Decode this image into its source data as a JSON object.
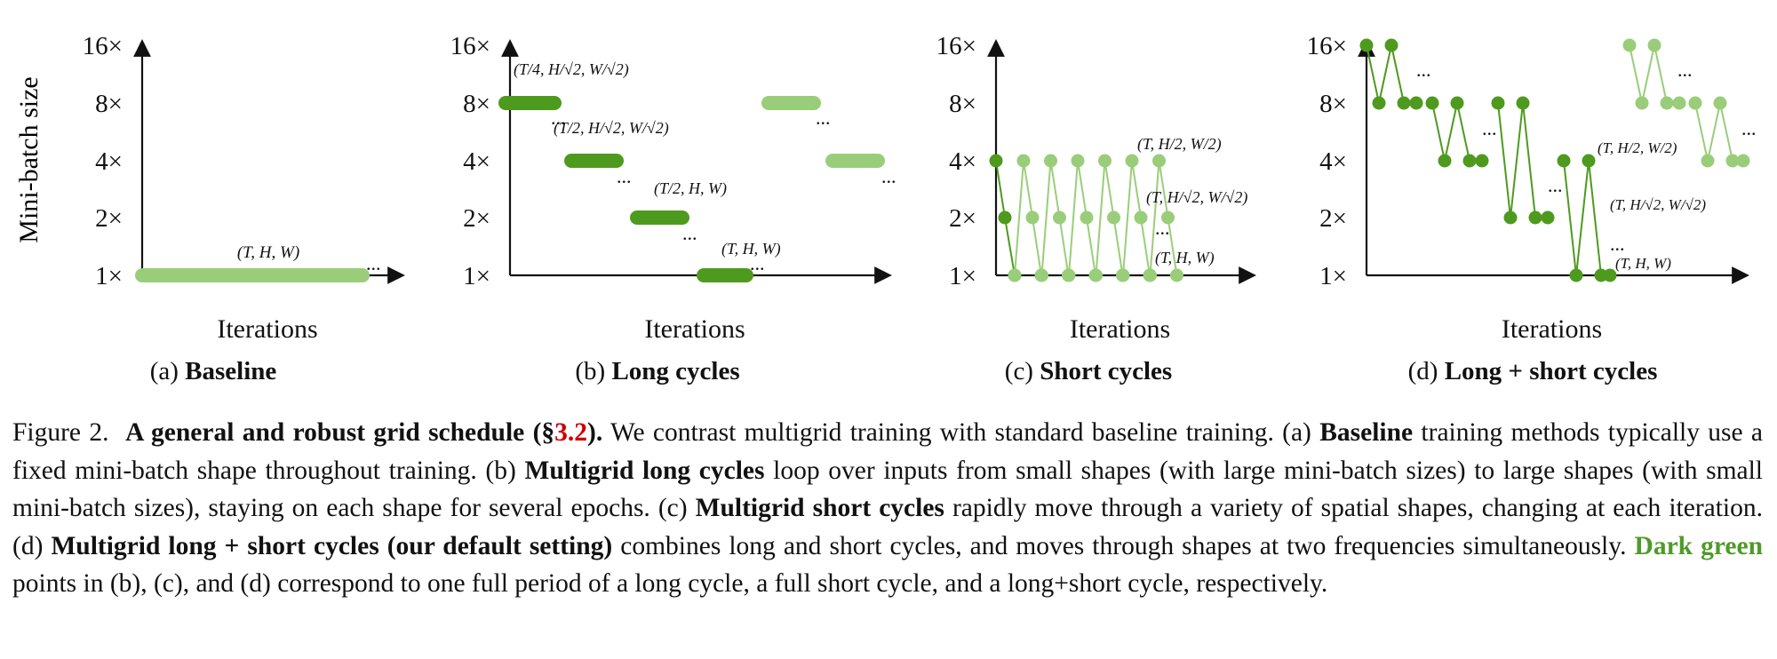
{
  "figure": {
    "ylabel": "Mini-batch size",
    "xlabel": "Iterations",
    "ytick_labels": [
      "1×",
      "2×",
      "4×",
      "8×",
      "16×"
    ],
    "ellipsis": "...",
    "colors": {
      "dark": "#4e9a1e",
      "light": "#9acd7a"
    }
  },
  "panels": [
    {
      "tag": "(a)",
      "title": "Baseline"
    },
    {
      "tag": "(b)",
      "title": "Long cycles"
    },
    {
      "tag": "(c)",
      "title": "Short cycles"
    },
    {
      "tag": "(d)",
      "title": "Long + short cycles"
    }
  ],
  "shape_labels": {
    "thw": "(T, H, W)",
    "t2_hw": "(T/2, H, W)",
    "t2_hr2": "(T/2, H/√2, W/√2)",
    "t4_hr2": "(T/4, H/√2, W/√2)",
    "t1_hr2": "(T, H/√2, W/√2)",
    "t1_h2": "(T, H/2, W/2)"
  },
  "caption": {
    "fig": "Figure 2.",
    "title": "A general and robust grid schedule",
    "ref_open": "(§",
    "ref": "3.2",
    "ref_close": ").",
    "s1": "We contrast multigrid training with standard baseline training. (a)",
    "baseline": "Baseline",
    "s2": "training methods typically use a fixed mini-batch shape throughout training. (b)",
    "mg_long": "Multigrid long cycles",
    "s3": "loop over inputs from small shapes (with large mini-batch sizes) to large shapes (with small mini-batch sizes), staying on each shape for several epochs. (c)",
    "mg_short": "Multigrid short cycles",
    "s4": "rapidly move through a variety of spatial shapes, changing at each iteration. (d)",
    "mg_both": "Multigrid long + short cycles (our default setting)",
    "s5": "combines long and short cycles, and moves through shapes at two frequencies simultaneously.",
    "dark_green": "Dark green",
    "s6": "points in (b), (c), and (d) correspond to one full period of a long cycle, a full short cycle, and a long+short cycle, respectively."
  }
}
